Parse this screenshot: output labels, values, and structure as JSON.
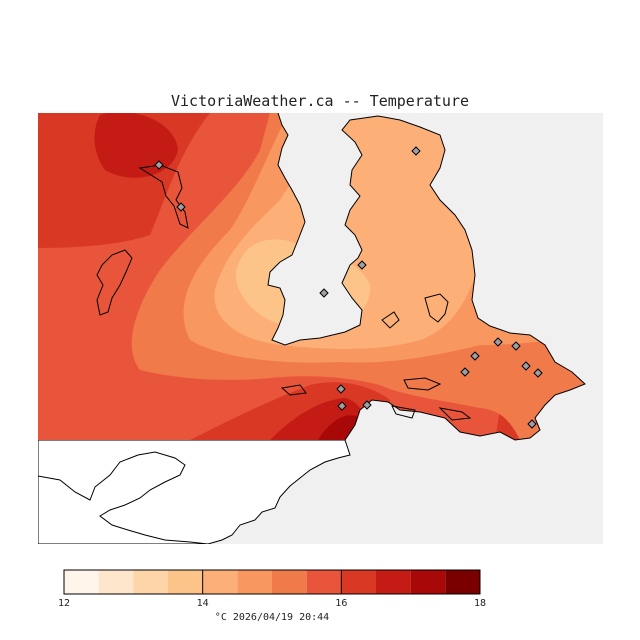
{
  "title": "VictoriaWeather.ca -- Temperature",
  "timestamp": "°C  2026/04/19 20:44",
  "colors": {
    "no_data": "#f0f0f0",
    "coast": "#000000",
    "land_outside": "#ffffff"
  },
  "legend": {
    "ticks": [
      "12",
      "14",
      "16",
      "18"
    ],
    "bins": [
      {
        "from": 12.0,
        "to": 12.5,
        "color": "#fff5eb"
      },
      {
        "from": 12.5,
        "to": 13.0,
        "color": "#fee6cc"
      },
      {
        "from": 13.0,
        "to": 13.5,
        "color": "#fdd5a8"
      },
      {
        "from": 13.5,
        "to": 14.0,
        "color": "#fdc48a"
      },
      {
        "from": 14.0,
        "to": 14.5,
        "color": "#fcb078"
      },
      {
        "from": 14.5,
        "to": 15.0,
        "color": "#f8975f"
      },
      {
        "from": 15.0,
        "to": 15.5,
        "color": "#f07a4a"
      },
      {
        "from": 15.5,
        "to": 16.0,
        "color": "#e8553a"
      },
      {
        "from": 16.0,
        "to": 16.5,
        "color": "#d93825"
      },
      {
        "from": 16.5,
        "to": 17.0,
        "color": "#c41b15"
      },
      {
        "from": 17.0,
        "to": 17.5,
        "color": "#a80808"
      },
      {
        "from": 17.5,
        "to": 18.0,
        "color": "#7a0000"
      }
    ]
  },
  "stations": [
    {
      "id": "station-1"
    },
    {
      "id": "station-2"
    },
    {
      "id": "station-3"
    },
    {
      "id": "station-4"
    },
    {
      "id": "station-5"
    },
    {
      "id": "station-6"
    },
    {
      "id": "station-7"
    },
    {
      "id": "station-8"
    },
    {
      "id": "station-9"
    },
    {
      "id": "station-10"
    },
    {
      "id": "station-11"
    },
    {
      "id": "station-12"
    },
    {
      "id": "station-13"
    },
    {
      "id": "station-14"
    },
    {
      "id": "station-15"
    }
  ]
}
